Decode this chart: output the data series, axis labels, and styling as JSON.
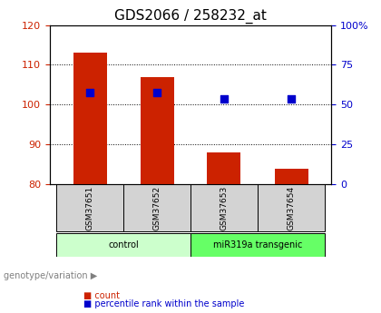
{
  "title": "GDS2066 / 258232_at",
  "samples": [
    "GSM37651",
    "GSM37652",
    "GSM37653",
    "GSM37654"
  ],
  "bar_values": [
    113,
    107,
    88,
    84
  ],
  "percentile_values": [
    103,
    103,
    101.5,
    101.5
  ],
  "bar_color": "#cc2200",
  "percentile_color": "#0000cc",
  "ylim_left": [
    80,
    120
  ],
  "yticks_left": [
    80,
    90,
    100,
    110,
    120
  ],
  "ylim_right": [
    0,
    100
  ],
  "yticks_right": [
    0,
    25,
    50,
    75,
    100
  ],
  "yticklabels_right": [
    "0",
    "25",
    "50",
    "75",
    "100%"
  ],
  "bar_bottom": 80,
  "groups": [
    {
      "label": "control",
      "samples": [
        0,
        1
      ],
      "color": "#ccffcc"
    },
    {
      "label": "miR319a transgenic",
      "samples": [
        2,
        3
      ],
      "color": "#66ff66"
    }
  ],
  "legend_items": [
    {
      "label": "count",
      "color": "#cc2200"
    },
    {
      "label": "percentile rank within the sample",
      "color": "#0000cc"
    }
  ],
  "genotype_label": "genotype/variation",
  "title_fontsize": 11,
  "tick_fontsize": 8,
  "bar_width": 0.5,
  "left_tick_color": "#cc2200",
  "right_tick_color": "#0000cc"
}
